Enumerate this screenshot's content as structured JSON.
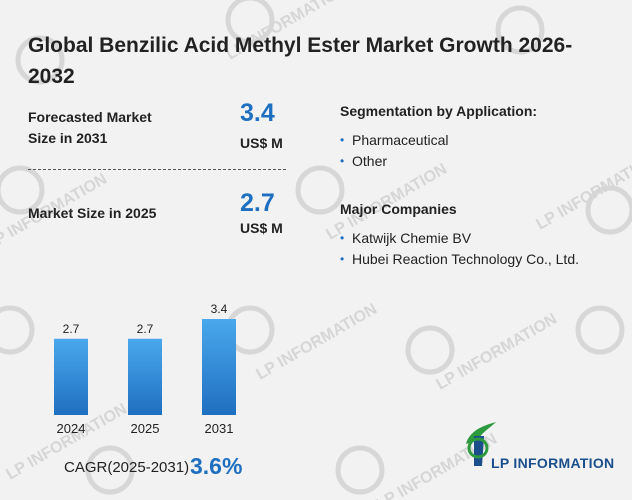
{
  "title": "Global Benzilic Acid Methyl Ester Market Growth 2026-2032",
  "kpis": {
    "forecast_label": "Forecasted Market Size in 2031",
    "forecast_value": "3.4",
    "forecast_unit": "US$ M",
    "current_label": "Market Size in 2025",
    "current_value": "2.7",
    "current_unit": "US$ M"
  },
  "segmentation": {
    "heading": "Segmentation by Application:",
    "items": [
      "Pharmaceutical",
      "Other"
    ]
  },
  "companies": {
    "heading": "Major Companies",
    "items": [
      "Katwijk Chemie BV",
      "Hubei Reaction Technology Co., Ltd."
    ]
  },
  "cagr": {
    "label": "CAGR(2025-2031)",
    "value": "3.6%"
  },
  "logo": {
    "text": "LP INFORMATION",
    "watermark": "LP INFORMATION"
  },
  "colors": {
    "bar_top": "#4aa8ec",
    "bar_bottom": "#1f6fc0",
    "accent": "#1f6fc0",
    "logo_green": "#2e9a3f",
    "logo_blue": "#1b4f8c"
  },
  "chart_data": {
    "type": "bar",
    "categories": [
      "2024",
      "2025",
      "2031"
    ],
    "values": [
      2.7,
      2.7,
      3.4
    ],
    "data_labels": [
      "2.7",
      "2.7",
      "3.4"
    ],
    "ylim": [
      0,
      3.4
    ],
    "grid": false,
    "legend": "none"
  }
}
